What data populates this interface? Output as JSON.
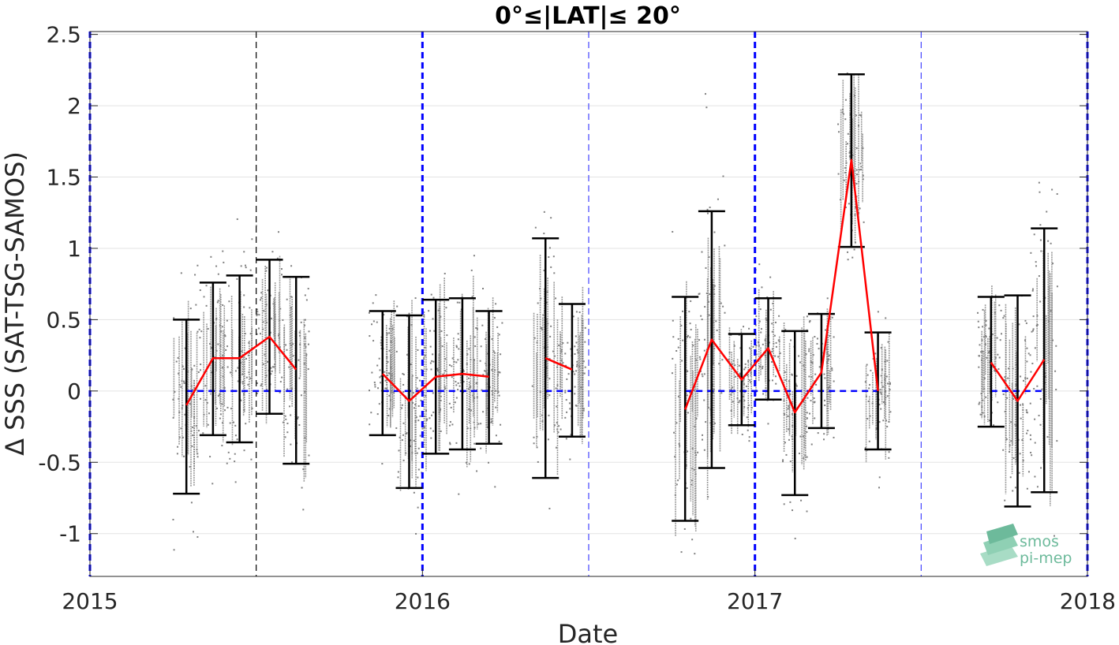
{
  "chart_data": {
    "type": "line",
    "title": "0°≤|LAT|≤ 20°",
    "xlabel": "Date",
    "ylabel": "Δ SSS (SAT-TSG-SAMOS)",
    "xlim": [
      2015.0,
      2018.0
    ],
    "ylim": [
      -1.3,
      2.52
    ],
    "x_ticks": [
      2015,
      2016,
      2017,
      2018
    ],
    "x_tick_labels": [
      "2015",
      "2016",
      "2017",
      "2018"
    ],
    "y_ticks": [
      2.5,
      2,
      1.5,
      1,
      0.5,
      0,
      -0.5,
      -1
    ],
    "y_tick_labels": [
      "2.5",
      "2",
      "1.5",
      "1",
      "0.5",
      "0",
      "-0.5",
      "-1"
    ],
    "grid": true,
    "year_lines": [
      2015,
      2016,
      2017,
      2018
    ],
    "half_year_lines": [
      2015.5,
      2016.5,
      2017.5
    ],
    "zero_line": 0,
    "colors": {
      "mean_line": "#ff0000",
      "error_bars": "#000000",
      "scatter": "#808080",
      "zero_line": "#0000ff",
      "year_lines": "#0000ff",
      "half_year_line_2015": "#000000",
      "half_year_lines_other": "#4444ff"
    },
    "mean_segments": [
      [
        [
          2015.29,
          -0.1
        ],
        [
          2015.37,
          0.23
        ],
        [
          2015.45,
          0.23
        ],
        [
          2015.54,
          0.38
        ],
        [
          2015.62,
          0.15
        ]
      ],
      [
        [
          2015.88,
          0.12
        ],
        [
          2015.96,
          -0.07
        ],
        [
          2016.04,
          0.1
        ],
        [
          2016.12,
          0.12
        ],
        [
          2016.2,
          0.1
        ]
      ],
      [
        [
          2016.37,
          0.23
        ],
        [
          2016.45,
          0.15
        ]
      ],
      [
        [
          2016.79,
          -0.13
        ],
        [
          2016.87,
          0.36
        ],
        [
          2016.96,
          0.08
        ],
        [
          2017.04,
          0.3
        ],
        [
          2017.12,
          -0.15
        ],
        [
          2017.2,
          0.13
        ],
        [
          2017.29,
          1.62
        ],
        [
          2017.37,
          0.0
        ]
      ],
      [
        [
          2017.71,
          0.2
        ],
        [
          2017.79,
          -0.07
        ],
        [
          2017.87,
          0.22
        ]
      ]
    ],
    "error_bars": [
      {
        "x": 2015.29,
        "low": -0.72,
        "high": 0.5
      },
      {
        "x": 2015.37,
        "low": -0.31,
        "high": 0.76
      },
      {
        "x": 2015.45,
        "low": -0.36,
        "high": 0.81
      },
      {
        "x": 2015.54,
        "low": -0.16,
        "high": 0.92
      },
      {
        "x": 2015.62,
        "low": -0.51,
        "high": 0.8
      },
      {
        "x": 2015.88,
        "low": -0.31,
        "high": 0.56
      },
      {
        "x": 2015.96,
        "low": -0.68,
        "high": 0.53
      },
      {
        "x": 2016.04,
        "low": -0.44,
        "high": 0.64
      },
      {
        "x": 2016.12,
        "low": -0.41,
        "high": 0.65
      },
      {
        "x": 2016.2,
        "low": -0.37,
        "high": 0.56
      },
      {
        "x": 2016.37,
        "low": -0.61,
        "high": 1.07
      },
      {
        "x": 2016.45,
        "low": -0.32,
        "high": 0.61
      },
      {
        "x": 2016.79,
        "low": -0.91,
        "high": 0.66
      },
      {
        "x": 2016.87,
        "low": -0.54,
        "high": 1.26
      },
      {
        "x": 2016.96,
        "low": -0.24,
        "high": 0.4
      },
      {
        "x": 2017.04,
        "low": -0.06,
        "high": 0.65
      },
      {
        "x": 2017.12,
        "low": -0.73,
        "high": 0.42
      },
      {
        "x": 2017.2,
        "low": -0.26,
        "high": 0.54
      },
      {
        "x": 2017.29,
        "low": 1.01,
        "high": 2.22
      },
      {
        "x": 2017.37,
        "low": -0.41,
        "high": 0.41
      },
      {
        "x": 2017.71,
        "low": -0.25,
        "high": 0.66
      },
      {
        "x": 2017.79,
        "low": -0.81,
        "high": 0.67
      },
      {
        "x": 2017.87,
        "low": -0.71,
        "high": 1.14
      }
    ],
    "zero_line_ranges": [
      [
        2015.29,
        2015.62
      ],
      [
        2015.88,
        2016.2
      ],
      [
        2016.37,
        2016.45
      ],
      [
        2016.79,
        2017.37
      ],
      [
        2017.71,
        2017.87
      ]
    ],
    "scatter_spread_note": "dense grey point clouds around each error bar"
  },
  "logo": {
    "line1": "smos",
    "line2": "pi-mep",
    "color": "#6dba9b"
  }
}
